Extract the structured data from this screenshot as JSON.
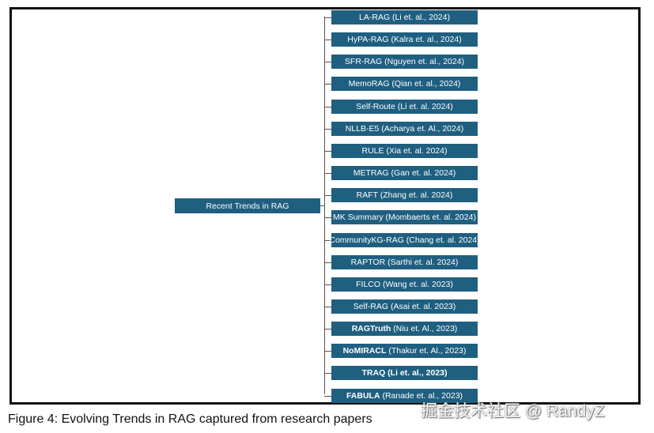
{
  "diagram": {
    "root": "Recent Trends in RAG",
    "children": [
      {
        "name": "",
        "rest": "LA-RAG (Li et. al., 2024)"
      },
      {
        "name": "",
        "rest": "HyPA-RAG (Kalra et. al., 2024)"
      },
      {
        "name": "",
        "rest": "SFR-RAG (Nguyen et. al., 2024)"
      },
      {
        "name": "",
        "rest": "MemoRAG (Qian et. al., 2024)"
      },
      {
        "name": "",
        "rest": "Self-Route (Li et. al. 2024)"
      },
      {
        "name": "",
        "rest": "NLLB-E5 (Acharya et. Al., 2024)"
      },
      {
        "name": "",
        "rest": "RULE (Xia et. al. 2024)"
      },
      {
        "name": "",
        "rest": "METRAG (Gan et. al. 2024)"
      },
      {
        "name": "",
        "rest": "RAFT (Zhang et. al. 2024)"
      },
      {
        "name": "",
        "rest": "MK Summary (Mombaerts et. al. 2024)"
      },
      {
        "name": "",
        "rest": "CommunityKG-RAG (Chang et. al. 2024)"
      },
      {
        "name": "",
        "rest": "RAPTOR (Sarthi et. al. 2024)"
      },
      {
        "name": "",
        "rest": "FILCO (Wang et. al. 2023)"
      },
      {
        "name": "",
        "rest": "Self-RAG (Asai et. al. 2023)"
      },
      {
        "name": "RAGTruth",
        "rest": " (Niu et. Al., 2023)"
      },
      {
        "name": "NoMIRACL",
        "rest": " (Thakur et. Al., 2023)"
      },
      {
        "name": "TRAQ (Li et. al., 2023)",
        "rest": ""
      },
      {
        "name": "FABULA",
        "rest": " (Ranade et. al., 2023)"
      }
    ]
  },
  "caption": "Figure 4: Evolving Trends in RAG captured from research papers",
  "watermark": "掘金技术社区 @ RandyZ",
  "colors": {
    "box": "#1f5f80",
    "line": "#555555",
    "frame": "#111111"
  }
}
